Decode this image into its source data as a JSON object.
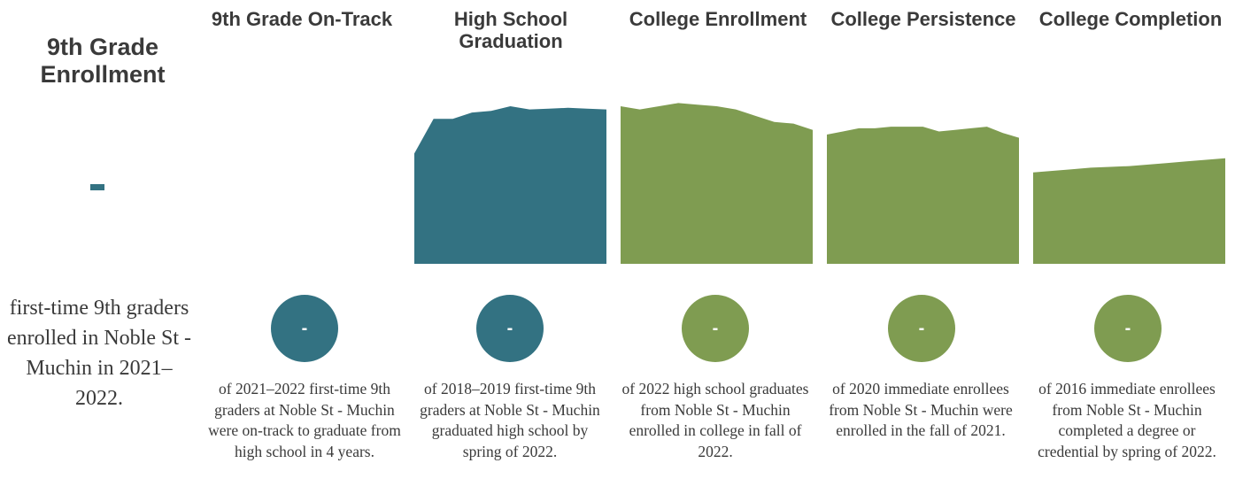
{
  "colors": {
    "teal": "#337282",
    "green": "#7f9c51",
    "text": "#3a3a3a"
  },
  "enrollment": {
    "title_line1": "9th Grade",
    "title_line2": "Enrollment",
    "value": "-",
    "desc": "first-time 9th graders enrolled in Noble St - Muchin in 2021–2022."
  },
  "stages": [
    {
      "title": "9th Grade On-Track",
      "value": "-",
      "color": "teal",
      "desc": "of 2021–2022 first-time 9th graders at Noble St - Muchin were on-track to graduate from high school in 4 years."
    },
    {
      "title": "High School Graduation",
      "value": "-",
      "color": "teal",
      "desc": "of 2018–2019 first-time 9th graders at Noble St - Muchin graduated high school by spring of 2022."
    },
    {
      "title": "College Enrollment",
      "value": "-",
      "color": "green",
      "desc": "of 2022 high school graduates from Noble St - Muchin enrolled in college in fall of 2022."
    },
    {
      "title": "College Persistence",
      "value": "-",
      "color": "green",
      "desc": "of 2020 immediate enrollees from Noble St - Muchin were enrolled in the fall of 2021."
    },
    {
      "title": "College Completion",
      "value": "-",
      "color": "green",
      "desc": "of 2016 immediate enrollees from Noble St - Muchin completed a degree or credential by spring of 2022."
    }
  ],
  "chart_data": {
    "type": "area",
    "ylim": [
      0,
      100
    ],
    "series": [
      {
        "color": "teal",
        "values": [
          70,
          92,
          92,
          96,
          97,
          100,
          98,
          98.5,
          99,
          98.5,
          98
        ]
      },
      {
        "color": "green",
        "values": [
          100,
          98,
          100,
          102,
          101,
          100,
          98,
          94,
          90,
          89,
          85
        ]
      },
      {
        "color": "green",
        "values": [
          82,
          84,
          86,
          86,
          87,
          87,
          87,
          84,
          85,
          86,
          87,
          83,
          80
        ]
      },
      {
        "color": "green",
        "values": [
          58,
          59,
          60,
          61,
          61.5,
          62,
          63,
          64,
          65,
          66,
          67
        ]
      }
    ]
  }
}
